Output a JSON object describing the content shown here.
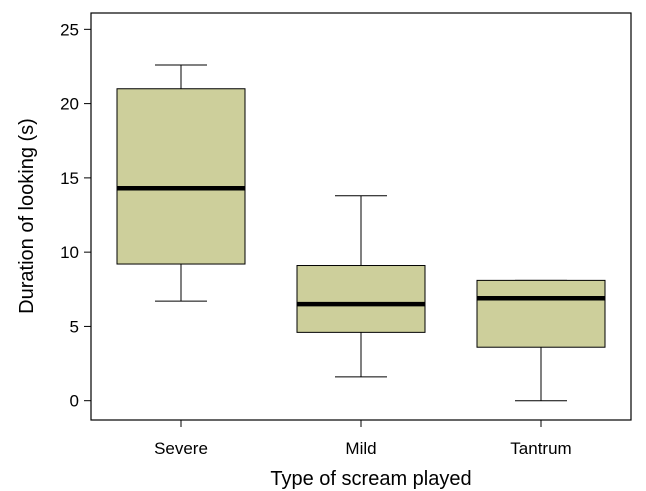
{
  "chart_data": {
    "type": "box",
    "title": "",
    "xlabel": "Type of scream played",
    "ylabel": "Duration of looking (s)",
    "ylim": [
      -1.3,
      26.1
    ],
    "yticks": [
      0,
      5,
      10,
      15,
      20,
      25
    ],
    "ytick_labels": [
      "0",
      "5",
      "10",
      "15",
      "20",
      "25"
    ],
    "grid": false,
    "legend": "none",
    "box_color": "#cdcf9b",
    "categories": [
      "Severe",
      "Mild",
      "Tantrum"
    ],
    "boxes": [
      {
        "category": "Severe",
        "whisker_low": 6.7,
        "q1": 9.2,
        "median": 14.3,
        "q3": 21.0,
        "whisker_high": 22.6
      },
      {
        "category": "Mild",
        "whisker_low": 1.6,
        "q1": 4.6,
        "median": 6.5,
        "q3": 9.1,
        "whisker_high": 13.8
      },
      {
        "category": "Tantrum",
        "whisker_low": 0.0,
        "q1": 3.6,
        "median": 6.9,
        "q3": 8.1,
        "whisker_high": 8.1
      }
    ]
  }
}
